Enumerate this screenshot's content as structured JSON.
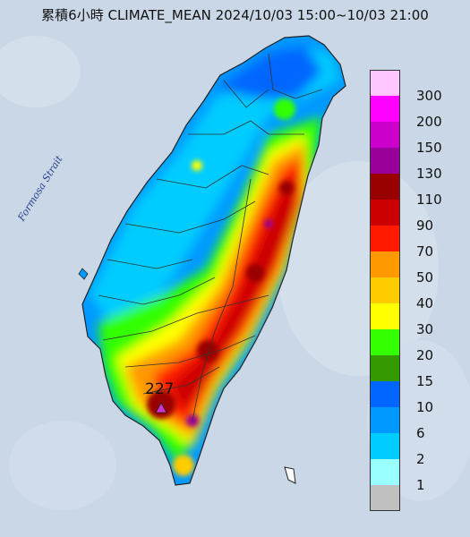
{
  "title": "累積6小時 CLIMATE_MEAN 2024/10/03 15:00~10/03 21:00",
  "strait_label": "Formosa Strait",
  "max_value": "227",
  "legend": [
    {
      "label": "300",
      "color": "#ffc6ff"
    },
    {
      "label": "200",
      "color": "#ff00ff"
    },
    {
      "label": "150",
      "color": "#cc00cc"
    },
    {
      "label": "130",
      "color": "#990099"
    },
    {
      "label": "110",
      "color": "#990000"
    },
    {
      "label": "90",
      "color": "#cc0000"
    },
    {
      "label": "70",
      "color": "#ff1a00"
    },
    {
      "label": "50",
      "color": "#ff9900"
    },
    {
      "label": "40",
      "color": "#ffcc00"
    },
    {
      "label": "30",
      "color": "#ffff00"
    },
    {
      "label": "20",
      "color": "#33ff00"
    },
    {
      "label": "15",
      "color": "#339900"
    },
    {
      "label": "10",
      "color": "#0066ff"
    },
    {
      "label": "6",
      "color": "#0099ff"
    },
    {
      "label": "2",
      "color": "#00ccff"
    },
    {
      "label": "1",
      "color": "#99ffff"
    },
    {
      "label": "",
      "color": "#c0c0c0"
    }
  ],
  "colors": {
    "sea": "#c9d7e6",
    "boundary": "#222222",
    "max_marker": "#cc33cc"
  }
}
